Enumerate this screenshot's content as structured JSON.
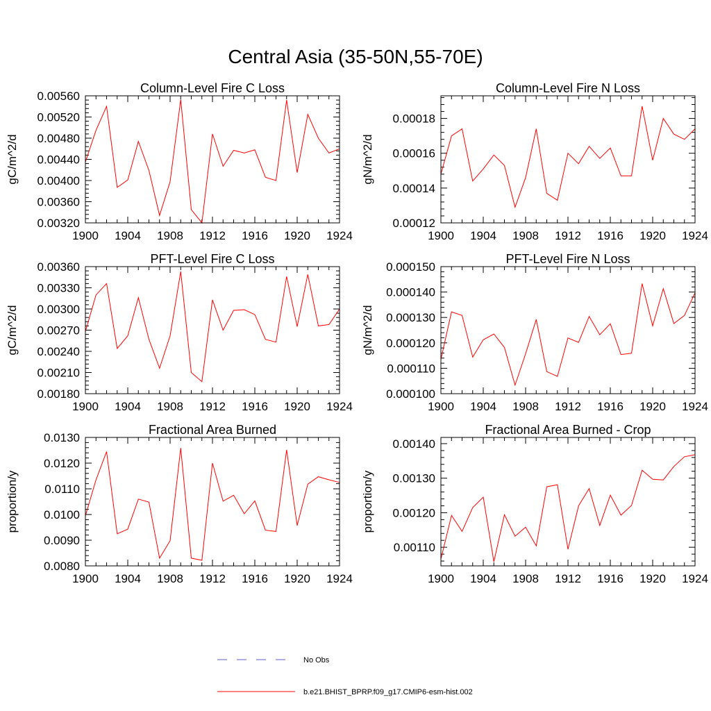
{
  "figure": {
    "title": "Central Asia (35-50N,55-70E)"
  },
  "legend": {
    "items": [
      {
        "label": "No Obs",
        "color": "#5b5bd0",
        "dash": true
      },
      {
        "label": "b.e21.BHIST_BPRP.f09_g17.CMIP6-esm-hist.002",
        "color": "#ff0000",
        "dash": false
      }
    ]
  },
  "chart_data": [
    {
      "type": "line",
      "title": "Column-Level Fire C Loss",
      "ylabel": "gC/m^2/d",
      "xlim": [
        1900,
        1924
      ],
      "ylim": [
        0.0032,
        0.0056
      ],
      "x_ticks": [
        1900,
        1904,
        1908,
        1912,
        1916,
        1920,
        1924
      ],
      "y_ticks": [
        "0.00320",
        "0.00360",
        "0.00400",
        "0.00440",
        "0.00480",
        "0.00520",
        "0.00560"
      ],
      "x": [
        1900,
        1901,
        1902,
        1903,
        1904,
        1905,
        1906,
        1907,
        1908,
        1909,
        1910,
        1911,
        1912,
        1913,
        1914,
        1915,
        1916,
        1917,
        1918,
        1919,
        1920,
        1921,
        1922,
        1923,
        1924
      ],
      "series": [
        {
          "color": "#ff0000",
          "values": [
            0.00435,
            0.00495,
            0.0054,
            0.00387,
            0.00401,
            0.00474,
            0.00419,
            0.00334,
            0.00398,
            0.00553,
            0.00345,
            0.0032,
            0.00488,
            0.00427,
            0.00457,
            0.00452,
            0.00458,
            0.00406,
            0.004,
            0.00552,
            0.00415,
            0.00525,
            0.0048,
            0.00452,
            0.0046
          ]
        }
      ]
    },
    {
      "type": "line",
      "title": "Column-Level Fire N Loss",
      "ylabel": "gN/m^2/d",
      "xlim": [
        1900,
        1924
      ],
      "ylim": [
        0.00012,
        0.000193
      ],
      "x_ticks": [
        1900,
        1904,
        1908,
        1912,
        1916,
        1920,
        1924
      ],
      "y_ticks": [
        "0.00012",
        "0.00014",
        "0.00016",
        "0.00018"
      ],
      "x": [
        1900,
        1901,
        1902,
        1903,
        1904,
        1905,
        1906,
        1907,
        1908,
        1909,
        1910,
        1911,
        1912,
        1913,
        1914,
        1915,
        1916,
        1917,
        1918,
        1919,
        1920,
        1921,
        1922,
        1923,
        1924
      ],
      "series": [
        {
          "color": "#ff0000",
          "values": [
            0.000148,
            0.00017,
            0.000174,
            0.000144,
            0.000151,
            0.000159,
            0.000153,
            0.000129,
            0.000146,
            0.000174,
            0.000137,
            0.000133,
            0.00016,
            0.000154,
            0.000164,
            0.000157,
            0.000163,
            0.000147,
            0.000147,
            0.000187,
            0.000156,
            0.00018,
            0.000171,
            0.000168,
            0.000174
          ]
        }
      ]
    },
    {
      "type": "line",
      "title": "PFT-Level Fire C Loss",
      "ylabel": "gC/m^2/d",
      "xlim": [
        1900,
        1924
      ],
      "ylim": [
        0.0018,
        0.0036
      ],
      "x_ticks": [
        1900,
        1904,
        1908,
        1912,
        1916,
        1920,
        1924
      ],
      "y_ticks": [
        "0.00180",
        "0.00210",
        "0.00240",
        "0.00270",
        "0.00300",
        "0.00330",
        "0.00360"
      ],
      "x": [
        1900,
        1901,
        1902,
        1903,
        1904,
        1905,
        1906,
        1907,
        1908,
        1909,
        1910,
        1911,
        1912,
        1913,
        1914,
        1915,
        1916,
        1917,
        1918,
        1919,
        1920,
        1921,
        1922,
        1923,
        1924
      ],
      "series": [
        {
          "color": "#ff0000",
          "values": [
            0.00268,
            0.0032,
            0.00336,
            0.00244,
            0.00262,
            0.00316,
            0.00257,
            0.00216,
            0.00262,
            0.00353,
            0.0021,
            0.00197,
            0.00313,
            0.0027,
            0.00298,
            0.00299,
            0.00292,
            0.00257,
            0.00253,
            0.00346,
            0.00275,
            0.00349,
            0.00276,
            0.00278,
            0.003
          ]
        }
      ]
    },
    {
      "type": "line",
      "title": "PFT-Level Fire N Loss",
      "ylabel": "gN/m^2/d",
      "xlim": [
        1900,
        1924
      ],
      "ylim": [
        0.0001,
        0.00015
      ],
      "x_ticks": [
        1900,
        1904,
        1908,
        1912,
        1916,
        1920,
        1924
      ],
      "y_ticks": [
        "0.000100",
        "0.000110",
        "0.000120",
        "0.000130",
        "0.000140",
        "0.000150"
      ],
      "x": [
        1900,
        1901,
        1902,
        1903,
        1904,
        1905,
        1906,
        1907,
        1908,
        1909,
        1910,
        1911,
        1912,
        1913,
        1914,
        1915,
        1916,
        1917,
        1918,
        1919,
        1920,
        1921,
        1922,
        1923,
        1924
      ],
      "series": [
        {
          "color": "#ff0000",
          "values": [
            0.0001135,
            0.0001322,
            0.0001308,
            0.0001144,
            0.0001212,
            0.0001235,
            0.0001182,
            0.0001034,
            0.0001157,
            0.0001292,
            0.0001087,
            0.0001068,
            0.0001219,
            0.0001202,
            0.0001304,
            0.0001232,
            0.0001275,
            0.0001154,
            0.0001159,
            0.0001433,
            0.0001267,
            0.0001413,
            0.0001276,
            0.0001308,
            0.0001397
          ]
        }
      ]
    },
    {
      "type": "line",
      "title": "Fractional Area Burned",
      "ylabel": "proportion/y",
      "xlim": [
        1900,
        1924
      ],
      "ylim": [
        0.008,
        0.013
      ],
      "x_ticks": [
        1900,
        1904,
        1908,
        1912,
        1916,
        1920,
        1924
      ],
      "y_ticks": [
        "0.0080",
        "0.0090",
        "0.0100",
        "0.0110",
        "0.0120",
        "0.0130"
      ],
      "x": [
        1900,
        1901,
        1902,
        1903,
        1904,
        1905,
        1906,
        1907,
        1908,
        1909,
        1910,
        1911,
        1912,
        1913,
        1914,
        1915,
        1916,
        1917,
        1918,
        1919,
        1920,
        1921,
        1922,
        1923,
        1924
      ],
      "series": [
        {
          "color": "#ff0000",
          "values": [
            0.00995,
            0.01135,
            0.01245,
            0.00925,
            0.00943,
            0.0106,
            0.01048,
            0.0083,
            0.00898,
            0.01259,
            0.0083,
            0.00822,
            0.012,
            0.01052,
            0.01075,
            0.01003,
            0.01053,
            0.00939,
            0.00934,
            0.01252,
            0.00957,
            0.01118,
            0.01147,
            0.01135,
            0.01125
          ]
        }
      ]
    },
    {
      "type": "line",
      "title": "Fractional Area Burned - Crop",
      "ylabel": "proportion/y",
      "xlim": [
        1900,
        1924
      ],
      "ylim": [
        0.001046,
        0.001418
      ],
      "x_ticks": [
        1900,
        1904,
        1908,
        1912,
        1916,
        1920,
        1924
      ],
      "y_ticks": [
        "0.00110",
        "0.00120",
        "0.00130",
        "0.00140"
      ],
      "x": [
        1900,
        1901,
        1902,
        1903,
        1904,
        1905,
        1906,
        1907,
        1908,
        1909,
        1910,
        1911,
        1912,
        1913,
        1914,
        1915,
        1916,
        1917,
        1918,
        1919,
        1920,
        1921,
        1922,
        1923,
        1924
      ],
      "series": [
        {
          "color": "#ff0000",
          "values": [
            0.001066,
            0.001192,
            0.001146,
            0.001215,
            0.001245,
            0.001058,
            0.001194,
            0.001132,
            0.001158,
            0.001104,
            0.001275,
            0.001281,
            0.001094,
            0.00122,
            0.00127,
            0.001163,
            0.001251,
            0.001193,
            0.001221,
            0.001323,
            0.001297,
            0.001295,
            0.001334,
            0.001362,
            0.001368
          ]
        }
      ]
    }
  ]
}
